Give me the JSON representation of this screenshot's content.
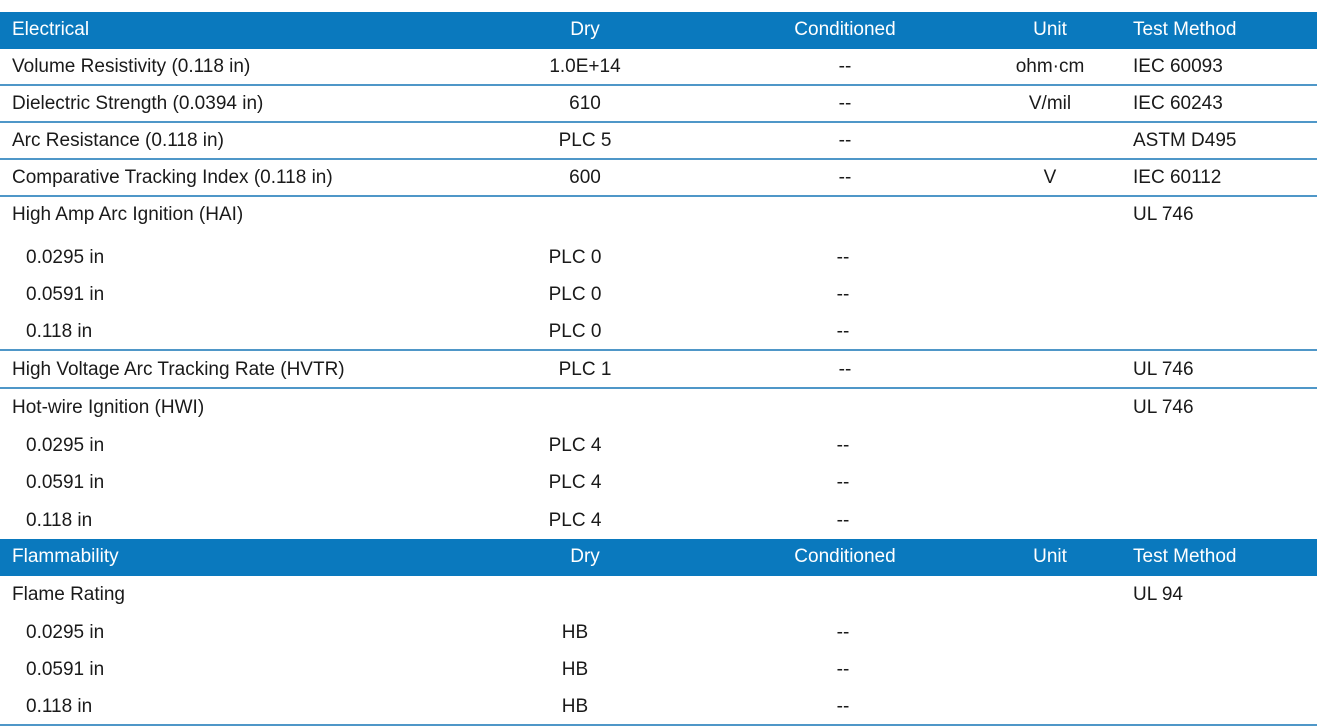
{
  "sections": {
    "electrical": {
      "header": {
        "name": "Electrical",
        "dry": "Dry",
        "conditioned": "Conditioned",
        "unit": "Unit",
        "method": "Test Method"
      },
      "rows": [
        {
          "name": "Volume Resistivity (0.118 in)",
          "dry": "1.0E+14",
          "conditioned": "--",
          "unit": "ohm·cm",
          "method": "IEC 60093"
        },
        {
          "name": "Dielectric Strength (0.0394 in)",
          "dry": "610",
          "conditioned": "--",
          "unit": "V/mil",
          "method": "IEC 60243"
        },
        {
          "name": "Arc Resistance (0.118 in)",
          "dry": "PLC 5",
          "conditioned": "--",
          "unit": "",
          "method": "ASTM D495"
        },
        {
          "name": "Comparative Tracking Index (0.118 in)",
          "dry": "600",
          "conditioned": "--",
          "unit": "V",
          "method": "IEC 60112"
        },
        {
          "name": "High Amp Arc Ignition (HAI)",
          "dry": "",
          "conditioned": "",
          "unit": "",
          "method": "UL 746"
        },
        {
          "name": "0.0295 in",
          "dry": "PLC 0",
          "conditioned": "--",
          "unit": "",
          "method": ""
        },
        {
          "name": "0.0591 in",
          "dry": "PLC 0",
          "conditioned": "--",
          "unit": "",
          "method": ""
        },
        {
          "name": "0.118 in",
          "dry": "PLC 0",
          "conditioned": "--",
          "unit": "",
          "method": ""
        },
        {
          "name": "High Voltage Arc Tracking Rate (HVTR)",
          "dry": "PLC 1",
          "conditioned": "--",
          "unit": "",
          "method": "UL 746"
        },
        {
          "name": "Hot-wire Ignition (HWI)",
          "dry": "",
          "conditioned": "",
          "unit": "",
          "method": "UL 746"
        },
        {
          "name": "0.0295 in",
          "dry": "PLC 4",
          "conditioned": "--",
          "unit": "",
          "method": ""
        },
        {
          "name": "0.0591 in",
          "dry": "PLC 4",
          "conditioned": "--",
          "unit": "",
          "method": ""
        },
        {
          "name": "0.118 in",
          "dry": "PLC 4",
          "conditioned": "--",
          "unit": "",
          "method": ""
        }
      ]
    },
    "flammability": {
      "header": {
        "name": "Flammability",
        "dry": "Dry",
        "conditioned": "Conditioned",
        "unit": "Unit",
        "method": "Test Method"
      },
      "rows": [
        {
          "name": "Flame Rating",
          "dry": "",
          "conditioned": "",
          "unit": "",
          "method": "UL 94"
        },
        {
          "name": "0.0295 in",
          "dry": "HB",
          "conditioned": "--",
          "unit": "",
          "method": ""
        },
        {
          "name": "0.0591 in",
          "dry": "HB",
          "conditioned": "--",
          "unit": "",
          "method": ""
        },
        {
          "name": "0.118 in",
          "dry": "HB",
          "conditioned": "--",
          "unit": "",
          "method": ""
        }
      ]
    }
  },
  "colors": {
    "header_bg": "#0a79be",
    "header_text": "#ffffff",
    "separator": "#4f97c8"
  }
}
